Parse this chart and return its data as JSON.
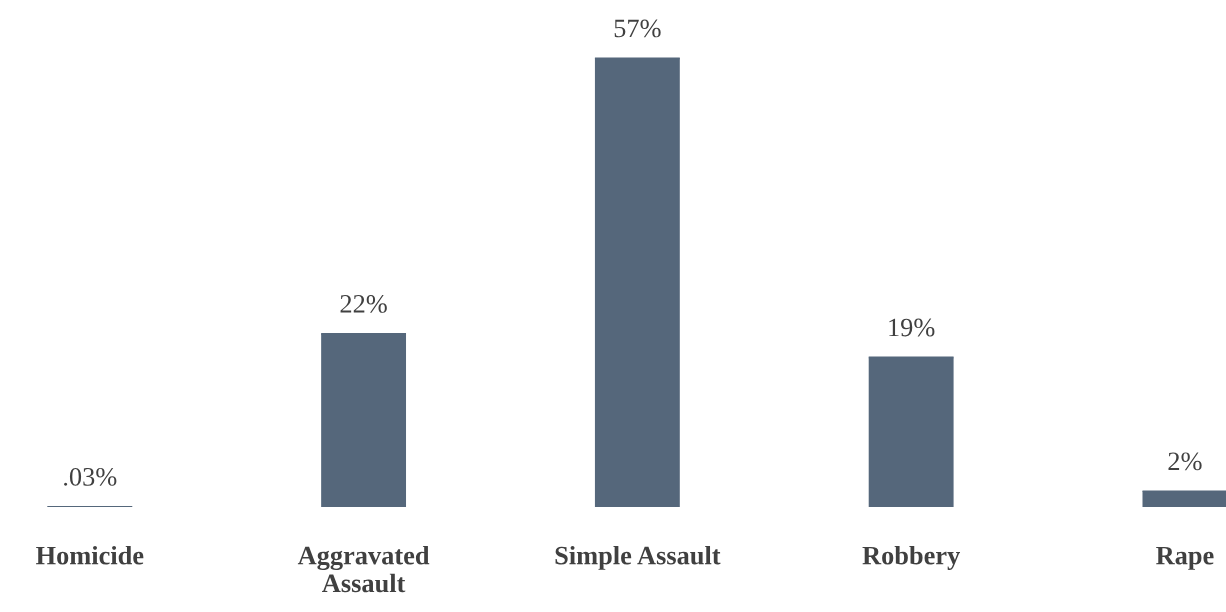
{
  "chart_data": {
    "type": "bar",
    "categories": [
      "Homicide",
      "Aggravated Assault",
      "Simple Assault",
      "Robbery",
      "Rape"
    ],
    "values": [
      0.03,
      22,
      57,
      19,
      2
    ],
    "value_labels": [
      ".03%",
      "22%",
      "57%",
      "19%",
      "2%"
    ],
    "color": "#55677b"
  }
}
